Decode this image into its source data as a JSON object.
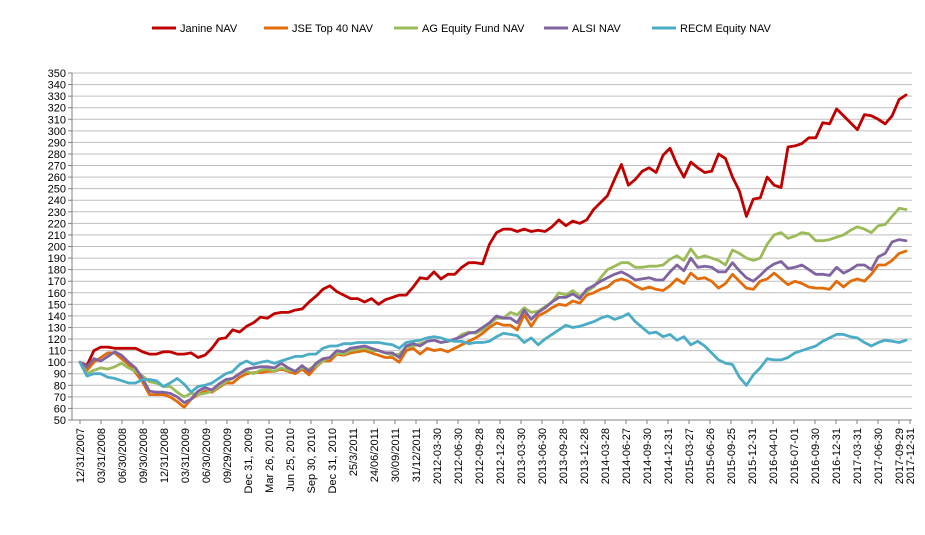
{
  "chart_data": {
    "type": "line",
    "title": "",
    "xlabel": "",
    "ylabel": "",
    "ylim": [
      50,
      350
    ],
    "y_ticks": [
      50,
      60,
      70,
      80,
      90,
      100,
      110,
      120,
      130,
      140,
      150,
      160,
      170,
      180,
      190,
      200,
      210,
      220,
      230,
      240,
      250,
      260,
      270,
      280,
      290,
      300,
      310,
      320,
      330,
      340,
      350
    ],
    "grid": "horizontal",
    "legend_position": "top",
    "x_tick_labels": [
      "12/31/2007",
      "03/31/2008",
      "06/30/2008",
      "09/30/2008",
      "12/31/2008",
      "03/31/2009",
      "06/30/2009",
      "09/29/2009",
      "Dec 31, 2009",
      "Mar 26, 2010",
      "Jun 25, 2010",
      "Sep 30, 2010",
      "Dec 31, 2010",
      "25/3/2011",
      "24/06/2011",
      "30/09/2011",
      "31/12/2011",
      "2012-03-30",
      "2012-06-30",
      "2012-09-28",
      "2012-12-28",
      "2013-03-30",
      "2013-06-30",
      "2013-09-28",
      "2013-12-28",
      "2014-03-28",
      "2014-06-27",
      "2014-09-30",
      "2014-12-31",
      "2015-03-27",
      "2015-06-26",
      "2015-09-25",
      "2015-12-31",
      "2016-04-01",
      "2016-07-01",
      "2016-09-30",
      "2016-12-31",
      "2017-03-31",
      "2017-06-30",
      "2017-09-29",
      "2017-12-31"
    ],
    "series": [
      {
        "name": "Janine NAV",
        "color": "#C00000",
        "values": [
          100,
          97,
          110,
          113,
          113,
          112,
          112,
          112,
          112,
          109,
          107,
          107,
          109,
          109,
          107,
          107,
          108,
          104,
          106,
          112,
          120,
          121,
          128,
          126,
          131,
          134,
          139,
          138,
          142,
          143,
          143,
          145,
          146,
          152,
          157,
          163,
          166,
          161,
          158,
          155,
          155,
          152,
          155,
          150,
          154,
          156,
          158,
          158,
          165,
          173,
          172,
          178,
          172,
          176,
          176,
          182,
          186,
          186,
          185,
          202,
          212,
          215,
          215,
          213,
          215,
          213,
          214,
          213,
          217,
          223,
          218,
          222,
          220,
          223,
          232,
          238,
          244,
          258,
          271,
          253,
          258,
          265,
          268,
          264,
          279,
          285,
          271,
          260,
          273,
          268,
          264,
          265,
          280,
          276,
          260,
          248,
          226,
          241,
          242,
          260,
          253,
          251,
          286,
          287,
          289,
          294,
          294,
          307,
          306,
          319,
          313,
          307,
          301,
          314,
          313,
          310,
          306,
          313,
          327,
          331
        ]
      },
      {
        "name": "JSE Top 40 NAV",
        "color": "#E36C09",
        "values": [
          100,
          93,
          100,
          104,
          108,
          108,
          103,
          98,
          91,
          83,
          72,
          72,
          72,
          70,
          66,
          61,
          68,
          72,
          75,
          74,
          78,
          82,
          82,
          87,
          90,
          91,
          91,
          92,
          92,
          94,
          92,
          90,
          94,
          89,
          96,
          101,
          101,
          107,
          106,
          108,
          109,
          110,
          108,
          106,
          104,
          104,
          100,
          110,
          112,
          107,
          112,
          110,
          111,
          109,
          112,
          115,
          118,
          121,
          125,
          130,
          134,
          132,
          132,
          128,
          141,
          131,
          140,
          143,
          147,
          150,
          149,
          153,
          151,
          158,
          160,
          163,
          165,
          170,
          172,
          170,
          166,
          163,
          165,
          163,
          162,
          166,
          172,
          168,
          177,
          172,
          173,
          170,
          164,
          168,
          176,
          170,
          164,
          163,
          170,
          172,
          177,
          172,
          167,
          170,
          168,
          165,
          164,
          164,
          163,
          170,
          165,
          170,
          172,
          170,
          176,
          184,
          184,
          188,
          194,
          196
        ]
      },
      {
        "name": "AG Equity Fund NAV",
        "color": "#9BBB59",
        "values": [
          100,
          90,
          93,
          95,
          94,
          96,
          99,
          95,
          92,
          88,
          83,
          82,
          79,
          79,
          74,
          70,
          73,
          72,
          73,
          75,
          79,
          83,
          86,
          90,
          92,
          90,
          93,
          94,
          92,
          95,
          93,
          92,
          95,
          94,
          97,
          101,
          104,
          108,
          107,
          110,
          111,
          112,
          110,
          110,
          108,
          106,
          107,
          113,
          114,
          116,
          118,
          119,
          117,
          118,
          119,
          124,
          126,
          125,
          128,
          133,
          138,
          138,
          143,
          141,
          147,
          143,
          144,
          148,
          152,
          160,
          158,
          162,
          157,
          161,
          165,
          173,
          180,
          183,
          186,
          186,
          182,
          182,
          183,
          183,
          184,
          189,
          192,
          188,
          198,
          190,
          192,
          190,
          188,
          184,
          197,
          194,
          190,
          188,
          190,
          202,
          210,
          212,
          207,
          209,
          212,
          211,
          205,
          205,
          206,
          208,
          210,
          214,
          217,
          215,
          212,
          218,
          219,
          226,
          233,
          232
        ]
      },
      {
        "name": "ALSI NAV",
        "color": "#8064A2",
        "values": [
          100,
          96,
          103,
          101,
          105,
          109,
          106,
          100,
          95,
          86,
          75,
          74,
          74,
          73,
          70,
          65,
          68,
          75,
          78,
          76,
          81,
          85,
          86,
          90,
          94,
          95,
          96,
          96,
          95,
          99,
          95,
          92,
          97,
          92,
          99,
          103,
          104,
          110,
          109,
          112,
          113,
          114,
          112,
          110,
          108,
          108,
          104,
          114,
          116,
          114,
          118,
          119,
          117,
          118,
          120,
          122,
          125,
          126,
          130,
          134,
          140,
          138,
          138,
          134,
          145,
          137,
          143,
          147,
          152,
          156,
          156,
          159,
          155,
          163,
          166,
          170,
          173,
          176,
          178,
          175,
          171,
          172,
          173,
          171,
          171,
          178,
          184,
          179,
          190,
          182,
          183,
          182,
          178,
          178,
          186,
          179,
          173,
          170,
          175,
          181,
          185,
          187,
          181,
          182,
          184,
          180,
          176,
          176,
          175,
          182,
          177,
          180,
          184,
          184,
          180,
          191,
          194,
          204,
          206,
          205
        ]
      },
      {
        "name": "RECM Equity  NAV",
        "color": "#4BACC6",
        "values": [
          100,
          88,
          90,
          90,
          87,
          86,
          84,
          82,
          82,
          85,
          85,
          84,
          79,
          82,
          86,
          81,
          74,
          79,
          80,
          82,
          86,
          90,
          92,
          98,
          101,
          98,
          100,
          101,
          99,
          101,
          103,
          105,
          105,
          107,
          107,
          112,
          114,
          114,
          116,
          116,
          117,
          117,
          117,
          117,
          116,
          115,
          112,
          117,
          118,
          119,
          121,
          122,
          121,
          119,
          118,
          118,
          116,
          117,
          117,
          118,
          122,
          125,
          124,
          123,
          117,
          121,
          115,
          120,
          124,
          128,
          132,
          130,
          131,
          133,
          135,
          138,
          140,
          137,
          139,
          142,
          135,
          130,
          125,
          126,
          122,
          124,
          119,
          122,
          115,
          118,
          114,
          108,
          102,
          99,
          98,
          87,
          80,
          89,
          95,
          103,
          102,
          102,
          104,
          108,
          110,
          112,
          114,
          118,
          121,
          124,
          124,
          122,
          121,
          117,
          114,
          117,
          119,
          118,
          117,
          119
        ]
      }
    ]
  }
}
